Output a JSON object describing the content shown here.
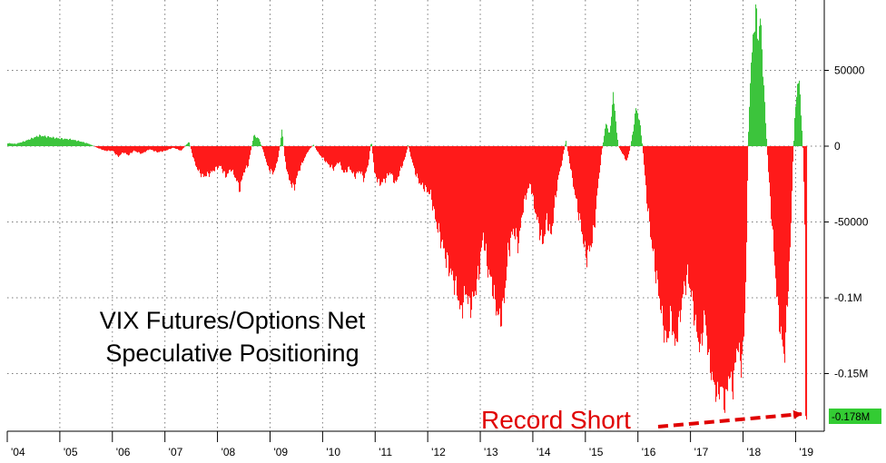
{
  "chart_data": {
    "type": "area",
    "title_lines": [
      "VIX Futures/Options Net",
      "Speculative Positioning"
    ],
    "annotation": "Record Short",
    "last_value_label": "-0.178M",
    "last_value": -178000,
    "x_tick_labels": [
      "'04",
      "'05",
      "'06",
      "'07",
      "'08",
      "'09",
      "'10",
      "'11",
      "'12",
      "'13",
      "'14",
      "'15",
      "'16",
      "'17",
      "'18",
      "'19"
    ],
    "y_ticks": [
      {
        "value": 50000,
        "label": "50000"
      },
      {
        "value": 0,
        "label": "0"
      },
      {
        "value": -50000,
        "label": "-50000"
      },
      {
        "value": -100000,
        "label": "-0.1M"
      },
      {
        "value": -150000,
        "label": "-0.15M"
      }
    ],
    "ylim": [
      -187000,
      95000
    ],
    "xlim": [
      2004.0,
      2019.2
    ],
    "positive_color": "#3cc43c",
    "negative_color": "#ff1a1a",
    "series": [
      {
        "x": 2004.0,
        "y": 2000
      },
      {
        "x": 2004.15,
        "y": 1500
      },
      {
        "x": 2004.3,
        "y": 3000
      },
      {
        "x": 2004.45,
        "y": 5000
      },
      {
        "x": 2004.6,
        "y": 7000
      },
      {
        "x": 2004.8,
        "y": 6000
      },
      {
        "x": 2005.0,
        "y": 5000
      },
      {
        "x": 2005.2,
        "y": 4500
      },
      {
        "x": 2005.4,
        "y": 3000
      },
      {
        "x": 2005.55,
        "y": 1500
      },
      {
        "x": 2005.7,
        "y": -1000
      },
      {
        "x": 2005.85,
        "y": -3000
      },
      {
        "x": 2006.0,
        "y": -3000
      },
      {
        "x": 2006.1,
        "y": -7000
      },
      {
        "x": 2006.2,
        "y": -4000
      },
      {
        "x": 2006.3,
        "y": -6000
      },
      {
        "x": 2006.4,
        "y": -3000
      },
      {
        "x": 2006.55,
        "y": -5000
      },
      {
        "x": 2006.7,
        "y": -2000
      },
      {
        "x": 2006.85,
        "y": -4000
      },
      {
        "x": 2007.0,
        "y": -3000
      },
      {
        "x": 2007.15,
        "y": -1000
      },
      {
        "x": 2007.3,
        "y": -3000
      },
      {
        "x": 2007.45,
        "y": 3000
      },
      {
        "x": 2007.55,
        "y": -10000
      },
      {
        "x": 2007.62,
        "y": -16000
      },
      {
        "x": 2007.72,
        "y": -20000
      },
      {
        "x": 2007.85,
        "y": -18000
      },
      {
        "x": 2007.95,
        "y": -15000
      },
      {
        "x": 2008.05,
        "y": -13000
      },
      {
        "x": 2008.15,
        "y": -20000
      },
      {
        "x": 2008.25,
        "y": -15000
      },
      {
        "x": 2008.35,
        "y": -22000
      },
      {
        "x": 2008.42,
        "y": -29000
      },
      {
        "x": 2008.48,
        "y": -18000
      },
      {
        "x": 2008.58,
        "y": -12000
      },
      {
        "x": 2008.68,
        "y": 7000
      },
      {
        "x": 2008.78,
        "y": 5000
      },
      {
        "x": 2008.88,
        "y": -5000
      },
      {
        "x": 2008.95,
        "y": -14000
      },
      {
        "x": 2009.05,
        "y": -18000
      },
      {
        "x": 2009.12,
        "y": -12000
      },
      {
        "x": 2009.18,
        "y": 0
      },
      {
        "x": 2009.22,
        "y": 12000
      },
      {
        "x": 2009.27,
        "y": -8000
      },
      {
        "x": 2009.35,
        "y": -22000
      },
      {
        "x": 2009.45,
        "y": -28000
      },
      {
        "x": 2009.52,
        "y": -18000
      },
      {
        "x": 2009.62,
        "y": -10000
      },
      {
        "x": 2009.72,
        "y": -3000
      },
      {
        "x": 2009.82,
        "y": 1000
      },
      {
        "x": 2009.92,
        "y": -5000
      },
      {
        "x": 2010.0,
        "y": -8000
      },
      {
        "x": 2010.1,
        "y": -12000
      },
      {
        "x": 2010.2,
        "y": -15000
      },
      {
        "x": 2010.3,
        "y": -10000
      },
      {
        "x": 2010.4,
        "y": -18000
      },
      {
        "x": 2010.5,
        "y": -14000
      },
      {
        "x": 2010.6,
        "y": -20000
      },
      {
        "x": 2010.7,
        "y": -16000
      },
      {
        "x": 2010.78,
        "y": -22000
      },
      {
        "x": 2010.86,
        "y": -12000
      },
      {
        "x": 2010.92,
        "y": 4000
      },
      {
        "x": 2010.98,
        "y": -18000
      },
      {
        "x": 2011.08,
        "y": -25000
      },
      {
        "x": 2011.18,
        "y": -22000
      },
      {
        "x": 2011.28,
        "y": -17000
      },
      {
        "x": 2011.38,
        "y": -25000
      },
      {
        "x": 2011.48,
        "y": -15000
      },
      {
        "x": 2011.56,
        "y": -8000
      },
      {
        "x": 2011.62,
        "y": 1000
      },
      {
        "x": 2011.68,
        "y": -8000
      },
      {
        "x": 2011.76,
        "y": -18000
      },
      {
        "x": 2011.85,
        "y": -25000
      },
      {
        "x": 2011.95,
        "y": -28000
      },
      {
        "x": 2012.05,
        "y": -32000
      },
      {
        "x": 2012.15,
        "y": -50000
      },
      {
        "x": 2012.25,
        "y": -62000
      },
      {
        "x": 2012.35,
        "y": -75000
      },
      {
        "x": 2012.45,
        "y": -85000
      },
      {
        "x": 2012.55,
        "y": -95000
      },
      {
        "x": 2012.62,
        "y": -110000
      },
      {
        "x": 2012.72,
        "y": -95000
      },
      {
        "x": 2012.8,
        "y": -107000
      },
      {
        "x": 2012.88,
        "y": -98000
      },
      {
        "x": 2012.96,
        "y": -85000
      },
      {
        "x": 2013.05,
        "y": -58000
      },
      {
        "x": 2013.12,
        "y": -78000
      },
      {
        "x": 2013.22,
        "y": -92000
      },
      {
        "x": 2013.3,
        "y": -108000
      },
      {
        "x": 2013.38,
        "y": -115000
      },
      {
        "x": 2013.45,
        "y": -100000
      },
      {
        "x": 2013.52,
        "y": -70000
      },
      {
        "x": 2013.62,
        "y": -55000
      },
      {
        "x": 2013.72,
        "y": -65000
      },
      {
        "x": 2013.8,
        "y": -42000
      },
      {
        "x": 2013.88,
        "y": -30000
      },
      {
        "x": 2013.95,
        "y": -25000
      },
      {
        "x": 2014.02,
        "y": -40000
      },
      {
        "x": 2014.1,
        "y": -52000
      },
      {
        "x": 2014.18,
        "y": -65000
      },
      {
        "x": 2014.26,
        "y": -48000
      },
      {
        "x": 2014.34,
        "y": -60000
      },
      {
        "x": 2014.42,
        "y": -35000
      },
      {
        "x": 2014.48,
        "y": -20000
      },
      {
        "x": 2014.55,
        "y": -10000
      },
      {
        "x": 2014.62,
        "y": 4000
      },
      {
        "x": 2014.68,
        "y": -8000
      },
      {
        "x": 2014.76,
        "y": -25000
      },
      {
        "x": 2014.84,
        "y": -40000
      },
      {
        "x": 2014.92,
        "y": -55000
      },
      {
        "x": 2015.0,
        "y": -73000
      },
      {
        "x": 2015.08,
        "y": -68000
      },
      {
        "x": 2015.16,
        "y": -55000
      },
      {
        "x": 2015.22,
        "y": -30000
      },
      {
        "x": 2015.3,
        "y": -5000
      },
      {
        "x": 2015.38,
        "y": 15000
      },
      {
        "x": 2015.46,
        "y": 8000
      },
      {
        "x": 2015.52,
        "y": 36000
      },
      {
        "x": 2015.56,
        "y": 20000
      },
      {
        "x": 2015.62,
        "y": 0
      },
      {
        "x": 2015.7,
        "y": -5000
      },
      {
        "x": 2015.78,
        "y": -10000
      },
      {
        "x": 2015.84,
        "y": -2000
      },
      {
        "x": 2015.9,
        "y": 10000
      },
      {
        "x": 2015.95,
        "y": 25000
      },
      {
        "x": 2016.02,
        "y": 18000
      },
      {
        "x": 2016.08,
        "y": 0
      },
      {
        "x": 2016.16,
        "y": -35000
      },
      {
        "x": 2016.24,
        "y": -60000
      },
      {
        "x": 2016.32,
        "y": -80000
      },
      {
        "x": 2016.4,
        "y": -100000
      },
      {
        "x": 2016.48,
        "y": -120000
      },
      {
        "x": 2016.55,
        "y": -130000
      },
      {
        "x": 2016.62,
        "y": -110000
      },
      {
        "x": 2016.7,
        "y": -133000
      },
      {
        "x": 2016.78,
        "y": -115000
      },
      {
        "x": 2016.86,
        "y": -95000
      },
      {
        "x": 2016.94,
        "y": -85000
      },
      {
        "x": 2017.02,
        "y": -100000
      },
      {
        "x": 2017.1,
        "y": -120000
      },
      {
        "x": 2017.18,
        "y": -135000
      },
      {
        "x": 2017.26,
        "y": -110000
      },
      {
        "x": 2017.34,
        "y": -140000
      },
      {
        "x": 2017.42,
        "y": -155000
      },
      {
        "x": 2017.5,
        "y": -165000
      },
      {
        "x": 2017.58,
        "y": -158000
      },
      {
        "x": 2017.65,
        "y": -172000
      },
      {
        "x": 2017.72,
        "y": -150000
      },
      {
        "x": 2017.8,
        "y": -160000
      },
      {
        "x": 2017.88,
        "y": -130000
      },
      {
        "x": 2017.96,
        "y": -145000
      },
      {
        "x": 2018.02,
        "y": -120000
      },
      {
        "x": 2018.06,
        "y": -60000
      },
      {
        "x": 2018.1,
        "y": 20000
      },
      {
        "x": 2018.14,
        "y": 50000
      },
      {
        "x": 2018.19,
        "y": 75000
      },
      {
        "x": 2018.24,
        "y": 90000
      },
      {
        "x": 2018.28,
        "y": 70000
      },
      {
        "x": 2018.32,
        "y": 85000
      },
      {
        "x": 2018.36,
        "y": 60000
      },
      {
        "x": 2018.4,
        "y": 30000
      },
      {
        "x": 2018.44,
        "y": 5000
      },
      {
        "x": 2018.48,
        "y": -20000
      },
      {
        "x": 2018.54,
        "y": -50000
      },
      {
        "x": 2018.6,
        "y": -80000
      },
      {
        "x": 2018.66,
        "y": -110000
      },
      {
        "x": 2018.72,
        "y": -125000
      },
      {
        "x": 2018.78,
        "y": -140000
      },
      {
        "x": 2018.84,
        "y": -100000
      },
      {
        "x": 2018.9,
        "y": -60000
      },
      {
        "x": 2018.94,
        "y": -10000
      },
      {
        "x": 2018.98,
        "y": 20000
      },
      {
        "x": 2019.02,
        "y": 40000
      },
      {
        "x": 2019.06,
        "y": 43000
      },
      {
        "x": 2019.1,
        "y": 20000
      },
      {
        "x": 2019.13,
        "y": 0
      },
      {
        "x": 2019.16,
        "y": -40000
      },
      {
        "x": 2019.19,
        "y": -90000
      },
      {
        "x": 2019.2,
        "y": -178000
      }
    ]
  }
}
